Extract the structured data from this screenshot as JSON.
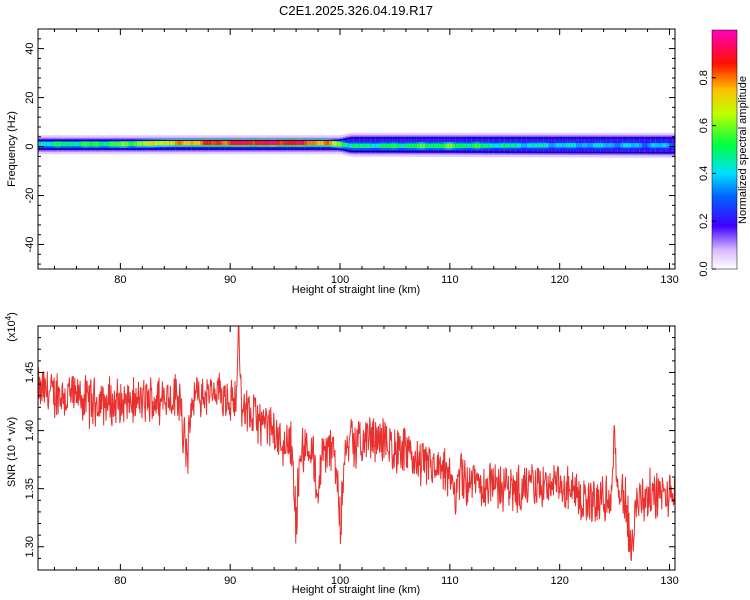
{
  "page": {
    "title": "C2E1.2025.326.04.19.R17"
  },
  "chart_data": [
    {
      "type": "heatmap",
      "xlabel": "Height of straight line (km)",
      "ylabel": "Frequency (Hz)",
      "xlim": [
        72.5,
        130.5
      ],
      "ylim": [
        -50,
        48
      ],
      "xticks": [
        80,
        90,
        100,
        110,
        120,
        130
      ],
      "xtick_labels": [
        "80",
        "90",
        "100",
        "110",
        "120",
        "130"
      ],
      "yticks": [
        -40,
        -20,
        0,
        20,
        40
      ],
      "ytick_labels": [
        "-40",
        "-20",
        "0",
        "20",
        "40"
      ],
      "band": {
        "center_hz": [
          [
            72.5,
            1.0
          ],
          [
            80,
            1.0
          ],
          [
            85,
            1.5
          ],
          [
            90,
            1.5
          ],
          [
            95,
            1.5
          ],
          [
            99,
            1.5
          ],
          [
            101,
            0.3
          ],
          [
            110,
            0.3
          ],
          [
            120,
            0.5
          ],
          [
            130.5,
            0.5
          ]
        ],
        "amplitude": [
          [
            72.5,
            0.45
          ],
          [
            76,
            0.5
          ],
          [
            80,
            0.55
          ],
          [
            84,
            0.7
          ],
          [
            88,
            0.82
          ],
          [
            92,
            0.9
          ],
          [
            96,
            0.88
          ],
          [
            99,
            0.75
          ],
          [
            101,
            0.45
          ],
          [
            105,
            0.5
          ],
          [
            110,
            0.55
          ],
          [
            115,
            0.45
          ],
          [
            120,
            0.4
          ],
          [
            125,
            0.38
          ],
          [
            130.5,
            0.35
          ]
        ],
        "halo_top_hz": [
          [
            72.5,
            3.0
          ],
          [
            100,
            3.0
          ],
          [
            101,
            4.0
          ],
          [
            130.5,
            4.0
          ]
        ],
        "halo_bottom_hz": [
          [
            72.5,
            -1.5
          ],
          [
            100,
            -1.5
          ],
          [
            101,
            -2.5
          ],
          [
            130.5,
            -3.0
          ]
        ]
      },
      "grid": false,
      "colorbar": {
        "label": "Normalized spectral amplitude",
        "range": [
          0,
          1
        ],
        "ticks": [
          "0.0",
          "0.2",
          "0.4",
          "0.6",
          "0.8"
        ],
        "tick_values": [
          0.0,
          0.2,
          0.4,
          0.6,
          0.8
        ],
        "colormap": "rainbow (white-violet-blue-cyan-green-yellow-red-magenta)"
      }
    },
    {
      "type": "line",
      "xlabel": "Height of straight line (km)",
      "ylabel": "SNR (10 * v/v)",
      "scale_label": "(x10^4)",
      "xlim": [
        72.5,
        130.5
      ],
      "ylim": [
        1.28,
        1.49
      ],
      "xticks": [
        80,
        90,
        100,
        110,
        120,
        130
      ],
      "xtick_labels": [
        "80",
        "90",
        "100",
        "110",
        "120",
        "130"
      ],
      "yticks": [
        1.3,
        1.35,
        1.4,
        1.45
      ],
      "ytick_labels": [
        "1.30",
        "1.35",
        "1.40",
        "1.45"
      ],
      "series": [
        {
          "color": "#e8302e",
          "trend": [
            [
              72.5,
              1.436
            ],
            [
              75,
              1.43
            ],
            [
              78,
              1.425
            ],
            [
              80,
              1.422
            ],
            [
              84,
              1.428
            ],
            [
              88,
              1.43
            ],
            [
              90,
              1.428
            ],
            [
              93,
              1.405
            ],
            [
              95,
              1.39
            ],
            [
              98,
              1.385
            ],
            [
              100,
              1.38
            ],
            [
              103,
              1.395
            ],
            [
              106,
              1.38
            ],
            [
              110,
              1.36
            ],
            [
              115,
              1.352
            ],
            [
              120,
              1.352
            ],
            [
              122,
              1.34
            ],
            [
              125,
              1.34
            ],
            [
              130.5,
              1.345
            ]
          ],
          "dips": [
            [
              86,
              1.36
            ],
            [
              96,
              1.31
            ],
            [
              98,
              1.33
            ],
            [
              100,
              1.305
            ],
            [
              110.5,
              1.345
            ],
            [
              126.5,
              1.28
            ]
          ],
          "peaks": [
            [
              90.8,
              1.49
            ],
            [
              101,
              1.42
            ],
            [
              125,
              1.41
            ]
          ]
        }
      ],
      "grid": false
    }
  ]
}
